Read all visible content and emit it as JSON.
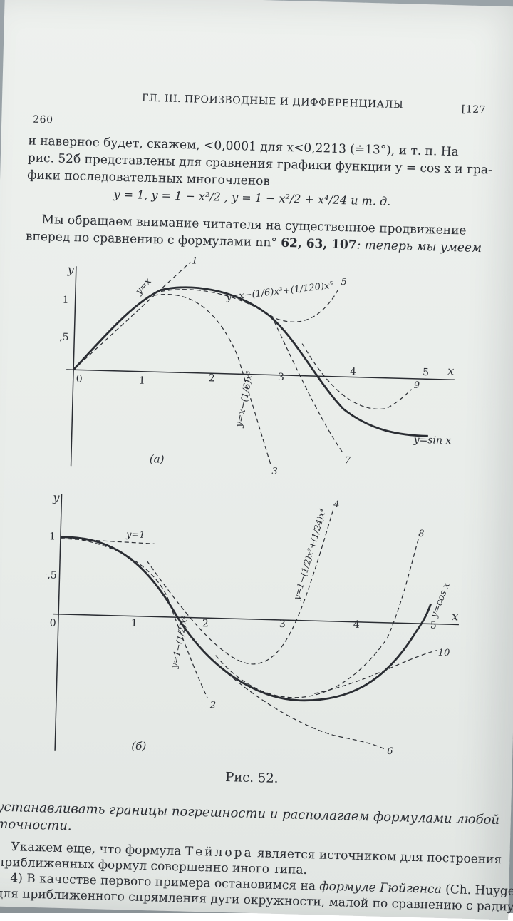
{
  "header": {
    "page_number": "260",
    "chapter": "ГЛ. III. ПРОИЗВОДНЫЕ И ДИФФЕРЕНЦИАЛЫ",
    "section": "[127"
  },
  "body_top": {
    "line1": "и наверное будет, скажем, <0,0001 для x<0,2213 (≐13°), и т. п. На",
    "line2": "рис. 52б представлены для сравнения графики функции y = cos x и гра-",
    "line3": "фики последовательных многочленов",
    "formula": "y = 1,    y = 1 − x²/2 ,    y = 1 − x²/2 + x⁴/24    и т. д.",
    "line4": "Мы обращаем внимание читателя на существенное продвижение",
    "line5_a": "вперед по сравнению с формулами nn° ",
    "line5_b": "62, 63, 107",
    "line5_c": ": теперь мы умеем"
  },
  "figure": {
    "caption": "Рис. 52.",
    "graph_a": {
      "label": "(a)",
      "y_axis": "y",
      "x_axis": "x",
      "ticks_x": [
        "0",
        "1",
        "2",
        "3",
        "4",
        "5"
      ],
      "ticks_y": [
        "1",
        "0,5"
      ],
      "curve_labels": {
        "c1": "y=x",
        "c5": "y=x−(1/6)x³+(1/120)x⁵",
        "c3": "y=x−(1/6)x³",
        "sin": "y=sin x"
      },
      "end_numbers": [
        "1",
        "5",
        "9",
        "7",
        "3"
      ]
    },
    "graph_b": {
      "label": "(б)",
      "y_axis": "y",
      "x_axis": "x",
      "ticks_x": [
        "0",
        "1",
        "2",
        "3",
        "4",
        "5"
      ],
      "ticks_y": [
        "1",
        "0,5"
      ],
      "curve_labels": {
        "c0": "y=1",
        "c4": "y=1−(1/2)x²+(1/24)x⁴",
        "c2": "y=1−(1/2)x²",
        "cos": "y=cos x"
      },
      "end_numbers": [
        "4",
        "8",
        "10",
        "2",
        "6"
      ]
    }
  },
  "body_bottom": {
    "line1": "устанавливать границы погрешности и располагаем формулами любой",
    "line2": "точности.",
    "line3_a": "Укажем еще, что формула ",
    "line3_b": "Тейлора",
    "line3_c": " является источником для построения",
    "line4": "приближенных формул совершенно иного типа.",
    "line5_a": "4) В качестве первого примера остановимся на ",
    "line5_b": "формуле Гюйгенса",
    "line5_c": " (Ch. Huygens)",
    "line6": "для приближенного спрямления дуги окружности, малой по сравнению с радиусом"
  }
}
